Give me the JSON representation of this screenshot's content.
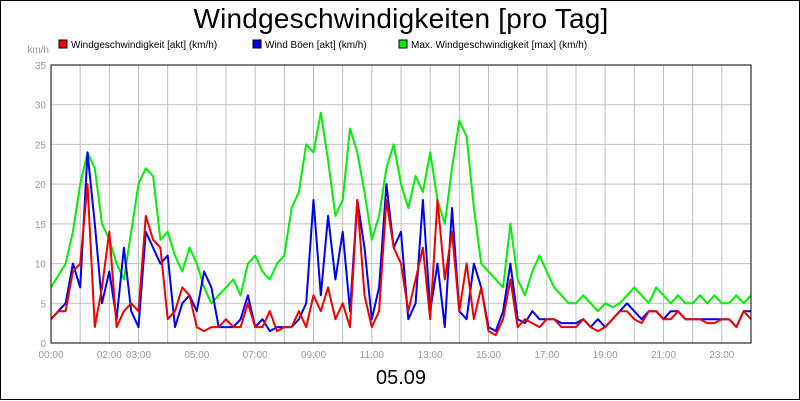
{
  "chart_data": {
    "type": "line",
    "title": "Windgeschwindigkeiten [pro Tag]",
    "date_label": "05.09",
    "ylabel": "km/h",
    "ylim": [
      0,
      35
    ],
    "yticks": [
      0,
      5,
      10,
      15,
      20,
      25,
      30,
      35
    ],
    "xlim": [
      0,
      24
    ],
    "xticks": [
      {
        "value": 0,
        "label": "00:00"
      },
      {
        "value": 2,
        "label": "02:00"
      },
      {
        "value": 3,
        "label": "03:00"
      },
      {
        "value": 5,
        "label": "05:00"
      },
      {
        "value": 7,
        "label": "07:00"
      },
      {
        "value": 9,
        "label": "09:00"
      },
      {
        "value": 11,
        "label": "11:00"
      },
      {
        "value": 13,
        "label": "13:00"
      },
      {
        "value": 15,
        "label": "15:00"
      },
      {
        "value": 17,
        "label": "17:00"
      },
      {
        "value": 19,
        "label": "19:00"
      },
      {
        "value": 21,
        "label": "21:00"
      },
      {
        "value": 23,
        "label": "23:00"
      }
    ],
    "grid": true,
    "legend_position": "top",
    "series": [
      {
        "name": "Max. Windgeschwindigkeit [max] (km/h)",
        "color": "#00ee00",
        "x": [
          0,
          0.25,
          0.5,
          0.75,
          1,
          1.25,
          1.5,
          1.75,
          2,
          2.25,
          2.5,
          2.75,
          3,
          3.25,
          3.5,
          3.75,
          4,
          4.25,
          4.5,
          4.75,
          5,
          5.25,
          5.5,
          5.75,
          6,
          6.25,
          6.5,
          6.75,
          7,
          7.25,
          7.5,
          7.75,
          8,
          8.25,
          8.5,
          8.75,
          9,
          9.25,
          9.5,
          9.75,
          10,
          10.25,
          10.5,
          10.75,
          11,
          11.25,
          11.5,
          11.75,
          12,
          12.25,
          12.5,
          12.75,
          13,
          13.25,
          13.5,
          13.75,
          14,
          14.25,
          14.5,
          14.75,
          15,
          15.25,
          15.5,
          15.75,
          16,
          16.25,
          16.5,
          16.75,
          17,
          17.25,
          17.5,
          17.75,
          18,
          18.25,
          18.5,
          18.75,
          19,
          19.25,
          19.5,
          19.75,
          20,
          20.25,
          20.5,
          20.75,
          21,
          21.25,
          21.5,
          21.75,
          22,
          22.25,
          22.5,
          22.75,
          23,
          23.25,
          23.5,
          23.75,
          24
        ],
        "y": [
          7,
          8.5,
          10,
          14,
          20,
          24,
          22,
          15,
          13,
          10,
          8,
          14,
          20,
          22,
          21,
          13,
          14,
          11,
          9,
          12,
          10,
          7,
          5,
          6,
          7,
          8,
          6,
          10,
          11,
          9,
          8,
          10,
          11,
          17,
          19,
          25,
          24,
          29,
          23,
          16,
          18,
          27,
          24,
          19,
          13,
          16,
          22,
          25,
          20,
          17,
          21,
          19,
          24,
          18,
          15,
          22,
          28,
          26,
          17,
          10,
          9,
          8,
          7,
          15,
          8,
          6,
          9,
          11,
          9,
          7,
          6,
          5,
          5,
          6,
          5,
          4,
          5,
          4.5,
          5,
          6,
          7,
          6,
          5,
          7,
          6,
          5,
          6,
          5,
          5,
          6,
          5,
          6,
          5,
          5,
          6,
          5,
          6
        ]
      },
      {
        "name": "Wind Böen [akt] (km/h)",
        "color": "#0000ee",
        "x": [
          0,
          0.25,
          0.5,
          0.75,
          1,
          1.25,
          1.5,
          1.75,
          2,
          2.25,
          2.5,
          2.75,
          3,
          3.25,
          3.5,
          3.75,
          4,
          4.25,
          4.5,
          4.75,
          5,
          5.25,
          5.5,
          5.75,
          6,
          6.25,
          6.5,
          6.75,
          7,
          7.25,
          7.5,
          7.75,
          8,
          8.25,
          8.5,
          8.75,
          9,
          9.25,
          9.5,
          9.75,
          10,
          10.25,
          10.5,
          10.75,
          11,
          11.25,
          11.5,
          11.75,
          12,
          12.25,
          12.5,
          12.75,
          13,
          13.25,
          13.5,
          13.75,
          14,
          14.25,
          14.5,
          14.75,
          15,
          15.25,
          15.5,
          15.75,
          16,
          16.25,
          16.5,
          16.75,
          17,
          17.25,
          17.5,
          17.75,
          18,
          18.25,
          18.5,
          18.75,
          19,
          19.25,
          19.5,
          19.75,
          20,
          20.25,
          20.5,
          20.75,
          21,
          21.25,
          21.5,
          21.75,
          22,
          22.25,
          22.5,
          22.75,
          23,
          23.25,
          23.5,
          23.75,
          24
        ],
        "y": [
          3,
          4,
          5,
          10,
          7,
          24,
          15,
          5,
          9,
          3,
          12,
          4,
          2,
          14,
          12,
          10,
          11,
          2,
          5,
          6,
          4,
          9,
          7,
          2,
          2,
          2,
          3,
          6,
          2,
          3,
          1.5,
          2,
          2,
          2,
          3,
          5,
          18,
          6,
          16,
          8,
          14,
          4,
          18,
          12,
          3,
          7,
          20,
          12,
          14,
          3,
          5,
          18,
          4,
          10,
          2,
          17,
          4,
          3,
          10,
          7,
          2,
          1.5,
          4,
          10,
          3,
          2.5,
          4,
          3,
          3,
          3,
          2.5,
          2.5,
          2.5,
          3,
          2,
          3,
          2,
          3,
          4,
          5,
          4,
          3,
          4,
          4,
          3,
          4,
          4,
          3,
          3,
          3,
          3,
          3,
          3,
          3,
          2,
          4,
          4
        ]
      },
      {
        "name": "Windgeschwindigkeit [akt] (km/h)",
        "color": "#ee0000",
        "x": [
          0,
          0.25,
          0.5,
          0.75,
          1,
          1.25,
          1.5,
          1.75,
          2,
          2.25,
          2.5,
          2.75,
          3,
          3.25,
          3.5,
          3.75,
          4,
          4.25,
          4.5,
          4.75,
          5,
          5.25,
          5.5,
          5.75,
          6,
          6.25,
          6.5,
          6.75,
          7,
          7.25,
          7.5,
          7.75,
          8,
          8.25,
          8.5,
          8.75,
          9,
          9.25,
          9.5,
          9.75,
          10,
          10.25,
          10.5,
          10.75,
          11,
          11.25,
          11.5,
          11.75,
          12,
          12.25,
          12.5,
          12.75,
          13,
          13.25,
          13.5,
          13.75,
          14,
          14.25,
          14.5,
          14.75,
          15,
          15.25,
          15.5,
          15.75,
          16,
          16.25,
          16.5,
          16.75,
          17,
          17.25,
          17.5,
          17.75,
          18,
          18.25,
          18.5,
          18.75,
          19,
          19.25,
          19.5,
          19.75,
          20,
          20.25,
          20.5,
          20.75,
          21,
          21.25,
          21.5,
          21.75,
          22,
          22.25,
          22.5,
          22.75,
          23,
          23.25,
          23.5,
          23.75,
          24
        ],
        "y": [
          3,
          4,
          4,
          9,
          10,
          20,
          2,
          7,
          14,
          2,
          4,
          5,
          4,
          16,
          13,
          12,
          3,
          4,
          7,
          6,
          2,
          1.5,
          2,
          2,
          3,
          2,
          2,
          5,
          2,
          2,
          4,
          1.5,
          2,
          2,
          4,
          2,
          6,
          4,
          7,
          3,
          5,
          2,
          18,
          6,
          2,
          4,
          18,
          12,
          10,
          4,
          8,
          12,
          3,
          18,
          8,
          14,
          4,
          10,
          3,
          7,
          1.5,
          1,
          3,
          8,
          2,
          3,
          2.5,
          2,
          3,
          3,
          2,
          2,
          2,
          3,
          2,
          1.5,
          2,
          3,
          4,
          4,
          3,
          2.5,
          4,
          4,
          3,
          3,
          4,
          3,
          3,
          3,
          2.5,
          2.5,
          3,
          3,
          2,
          4,
          3
        ]
      }
    ]
  }
}
